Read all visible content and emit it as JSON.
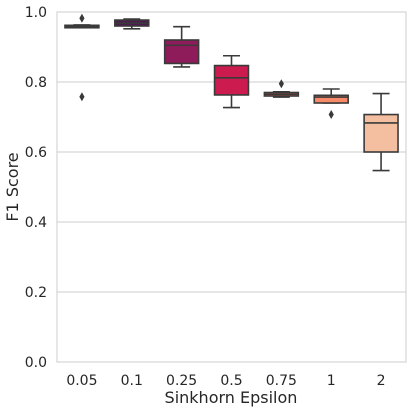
{
  "chart_data": {
    "type": "box",
    "title": "",
    "xlabel": "Sinkhorn Epsilon",
    "ylabel": "F1 Score",
    "ylim": [
      0.0,
      1.0
    ],
    "yticks": [
      "0.0",
      "0.2",
      "0.4",
      "0.6",
      "0.8",
      "1.0"
    ],
    "grid": "horizontal",
    "legend": "none",
    "categories": [
      "0.05",
      "0.1",
      "0.25",
      "0.5",
      "0.75",
      "1",
      "2"
    ],
    "boxes": [
      {
        "category": "0.05",
        "whisker_low": 0.955,
        "q1": 0.955,
        "median": 0.958,
        "q3": 0.962,
        "whisker_high": 0.963,
        "outliers": [
          0.982,
          0.758
        ],
        "color": "#1f0f1e"
      },
      {
        "category": "0.1",
        "whisker_low": 0.952,
        "q1": 0.96,
        "median": 0.968,
        "q3": 0.977,
        "whisker_high": 0.98,
        "outliers": [],
        "color": "#4f1a4f"
      },
      {
        "category": "0.25",
        "whisker_low": 0.843,
        "q1": 0.853,
        "median": 0.905,
        "q3": 0.92,
        "whisker_high": 0.958,
        "outliers": [],
        "color": "#8e1c5b"
      },
      {
        "category": "0.5",
        "whisker_low": 0.727,
        "q1": 0.763,
        "median": 0.812,
        "q3": 0.847,
        "whisker_high": 0.875,
        "outliers": [],
        "color": "#cb1b4f"
      },
      {
        "category": "0.75",
        "whisker_low": 0.757,
        "q1": 0.76,
        "median": 0.765,
        "q3": 0.77,
        "whisker_high": 0.772,
        "outliers": [
          0.795
        ],
        "color": "#f0513e"
      },
      {
        "category": "1",
        "whisker_low": 0.74,
        "q1": 0.74,
        "median": 0.757,
        "q3": 0.762,
        "whisker_high": 0.78,
        "outliers": [
          0.707
        ],
        "color": "#f78b69"
      },
      {
        "category": "2",
        "whisker_low": 0.547,
        "q1": 0.6,
        "median": 0.683,
        "q3": 0.707,
        "whisker_high": 0.767,
        "outliers": [],
        "color": "#f3bfa0"
      }
    ]
  },
  "colors": {
    "grid": "#cccccc",
    "frame": "#cccccc",
    "line": "#3a3a3a",
    "text": "#262626"
  }
}
